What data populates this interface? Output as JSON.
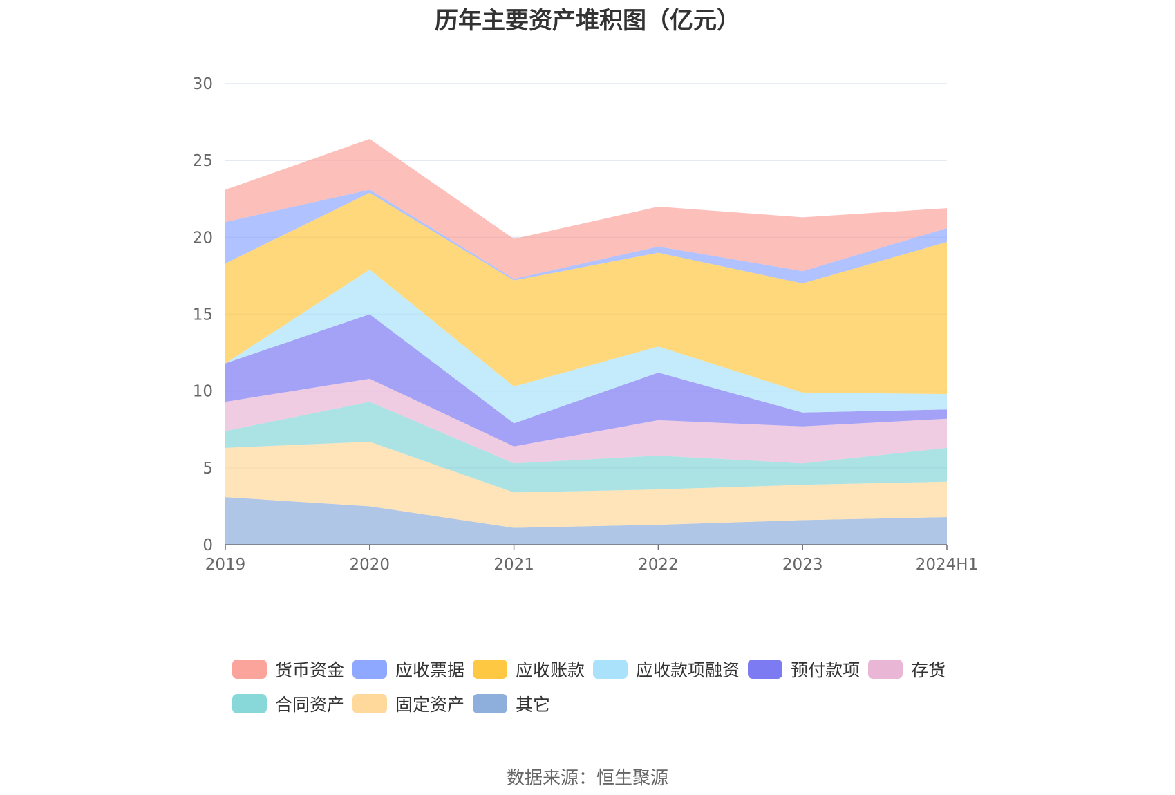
{
  "source": "数据来源：恒生聚源",
  "chart_data": {
    "type": "area",
    "stacked": true,
    "title": "历年主要资产堆积图（亿元）",
    "categories": [
      "2019",
      "2020",
      "2021",
      "2022",
      "2023",
      "2024H1"
    ],
    "ylim": [
      0,
      30
    ],
    "yticks": [
      "0",
      "5",
      "10",
      "15",
      "20",
      "25",
      "30"
    ],
    "grid": true,
    "legend_position": "bottom",
    "series": [
      {
        "name": "其它",
        "color": "#8eaedb",
        "values": [
          3.1,
          2.5,
          1.1,
          1.3,
          1.6,
          1.8
        ]
      },
      {
        "name": "固定资产",
        "color": "#ffd99b",
        "values": [
          3.2,
          4.2,
          2.3,
          2.3,
          2.3,
          2.3
        ]
      },
      {
        "name": "合同资产",
        "color": "#88d7d9",
        "values": [
          1.1,
          2.6,
          1.9,
          2.2,
          1.4,
          2.2
        ]
      },
      {
        "name": "存货",
        "color": "#e9b7d5",
        "values": [
          1.9,
          1.5,
          1.1,
          2.3,
          2.4,
          1.9
        ]
      },
      {
        "name": "预付款项",
        "color": "#7c7bf2",
        "values": [
          2.5,
          4.2,
          1.5,
          3.1,
          0.9,
          0.6
        ]
      },
      {
        "name": "应收款项融资",
        "color": "#aae2fb",
        "values": [
          0,
          2.9,
          2.4,
          1.7,
          1.3,
          1.0
        ]
      },
      {
        "name": "应收账款",
        "color": "#ffc843",
        "values": [
          6.5,
          5.0,
          6.9,
          6.1,
          7.1,
          9.9
        ]
      },
      {
        "name": "应收票据",
        "color": "#8fa8ff",
        "values": [
          2.7,
          0.2,
          0.1,
          0.4,
          0.8,
          0.9
        ]
      },
      {
        "name": "货币资金",
        "color": "#fba49c",
        "values": [
          2.1,
          3.3,
          2.6,
          2.6,
          3.5,
          1.3
        ]
      }
    ],
    "legend_order": [
      "货币资金",
      "应收票据",
      "应收账款",
      "应收款项融资",
      "预付款项",
      "存货",
      "合同资产",
      "固定资产",
      "其它"
    ]
  }
}
